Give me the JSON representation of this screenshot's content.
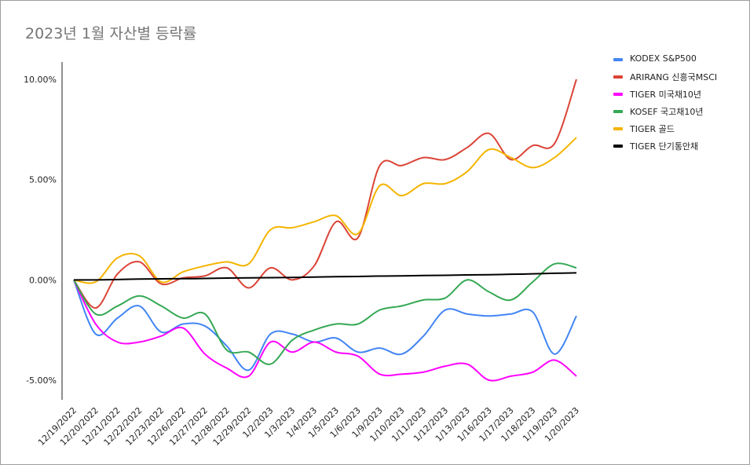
{
  "colors": {
    "KODEX": "#4285f4",
    "ARIRANG": "#db4437",
    "TIGER_TREASURY": "#ff00ff",
    "KOSEF": "#34a853",
    "TIGER_GOLD": "#f4b400",
    "TIGER_SHORT": "#000000"
  },
  "chart_data": {
    "type": "line",
    "title": "2023년 1월 자산별 등락률",
    "xlabel": "",
    "ylabel": "",
    "ylim": [
      -0.06,
      0.11
    ],
    "y_ticks": [
      "10.00%",
      "5.00%",
      "0.00%",
      "-5.00%"
    ],
    "y_tick_values": [
      0.1,
      0.05,
      0.0,
      -0.05
    ],
    "grid": false,
    "legend_position": "right",
    "categories": [
      "12/19/2022",
      "12/20/2022",
      "12/21/2022",
      "12/22/2022",
      "12/23/2022",
      "12/26/2022",
      "12/27/2022",
      "12/28/2022",
      "12/29/2022",
      "1/2/2023",
      "1/3/2023",
      "1/4/2023",
      "1/5/2023",
      "1/6/2023",
      "1/9/2023",
      "1/10/2023",
      "1/11/2023",
      "1/12/2023",
      "1/13/2023",
      "1/16/2023",
      "1/17/2023",
      "1/18/2023",
      "1/19/2023",
      "1/20/2023"
    ],
    "series": [
      {
        "name": "KODEX S&P500",
        "color_key": "KODEX",
        "values": [
          0,
          -0.027,
          -0.019,
          -0.013,
          -0.026,
          -0.022,
          -0.023,
          -0.033,
          -0.045,
          -0.027,
          -0.027,
          -0.031,
          -0.029,
          -0.036,
          -0.034,
          -0.037,
          -0.028,
          -0.015,
          -0.017,
          -0.018,
          -0.017,
          -0.016,
          -0.037,
          -0.018
        ]
      },
      {
        "name": "ARIRANG 신흥국MSCI",
        "color_key": "ARIRANG",
        "values": [
          0,
          -0.014,
          0.003,
          0.009,
          -0.002,
          0.001,
          0.002,
          0.006,
          -0.004,
          0.006,
          0.0,
          0.007,
          0.029,
          0.021,
          0.057,
          0.057,
          0.061,
          0.06,
          0.066,
          0.073,
          0.06,
          0.067,
          0.068,
          0.1
        ]
      },
      {
        "name": "TIGER 미국채10년",
        "color_key": "TIGER_TREASURY",
        "values": [
          0,
          -0.022,
          -0.031,
          -0.031,
          -0.028,
          -0.024,
          -0.037,
          -0.044,
          -0.048,
          -0.031,
          -0.036,
          -0.031,
          -0.036,
          -0.038,
          -0.047,
          -0.047,
          -0.046,
          -0.043,
          -0.042,
          -0.05,
          -0.048,
          -0.046,
          -0.04,
          -0.048
        ]
      },
      {
        "name": "KOSEF 국고채10년",
        "color_key": "KOSEF",
        "values": [
          0,
          -0.017,
          -0.013,
          -0.008,
          -0.013,
          -0.019,
          -0.017,
          -0.035,
          -0.036,
          -0.042,
          -0.03,
          -0.025,
          -0.022,
          -0.022,
          -0.015,
          -0.013,
          -0.01,
          -0.009,
          0.0,
          -0.006,
          -0.01,
          -0.001,
          0.008,
          0.006
        ]
      },
      {
        "name": "TIGER 골드",
        "color_key": "TIGER_GOLD",
        "values": [
          0,
          -0.001,
          0.011,
          0.012,
          -0.001,
          0.004,
          0.007,
          0.009,
          0.008,
          0.025,
          0.026,
          0.029,
          0.032,
          0.023,
          0.047,
          0.042,
          0.048,
          0.048,
          0.054,
          0.065,
          0.061,
          0.056,
          0.061,
          0.071
        ]
      },
      {
        "name": "TIGER 단기통안채",
        "color_key": "TIGER_SHORT",
        "values": [
          0,
          0.0,
          0.0002,
          0.0004,
          0.0005,
          0.0006,
          0.0007,
          0.0009,
          0.001,
          0.0011,
          0.0012,
          0.0014,
          0.0016,
          0.0017,
          0.0019,
          0.002,
          0.0022,
          0.0023,
          0.0025,
          0.0026,
          0.0028,
          0.003,
          0.0033,
          0.0035
        ]
      }
    ]
  }
}
